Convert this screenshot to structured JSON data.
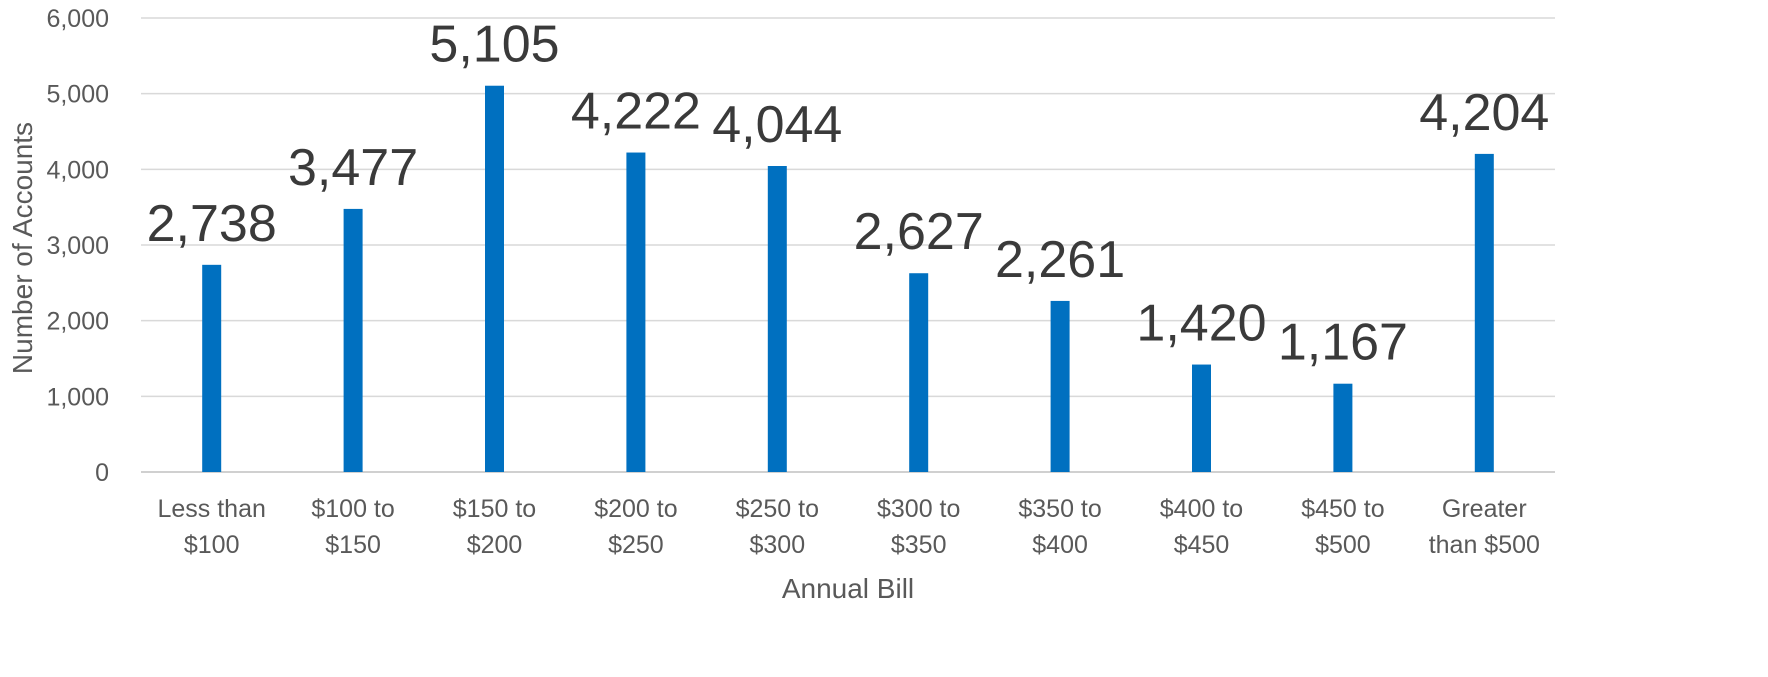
{
  "chart_data": {
    "type": "bar",
    "title": "",
    "xlabel": "Annual Bill",
    "ylabel": "Number of Accounts",
    "ylim": [
      0,
      6000
    ],
    "yticks": [
      0,
      1000,
      2000,
      3000,
      4000,
      5000,
      6000
    ],
    "ytick_labels": [
      "0",
      "1,000",
      "2,000",
      "3,000",
      "4,000",
      "5,000",
      "6,000"
    ],
    "grid": true,
    "legend": "none",
    "colors": {
      "bar": "#0070c0",
      "grid": "#d9d9d9",
      "axis_text": "#595959",
      "data_label": "#3a3a3a"
    },
    "categories": [
      [
        "Less than",
        "$100"
      ],
      [
        "$100 to",
        "$150"
      ],
      [
        "$150 to",
        "$200"
      ],
      [
        "$200 to",
        "$250"
      ],
      [
        "$250 to",
        "$300"
      ],
      [
        "$300 to",
        "$350"
      ],
      [
        "$350 to",
        "$400"
      ],
      [
        "$400 to",
        "$450"
      ],
      [
        "$450 to",
        "$500"
      ],
      [
        "Greater",
        "than $500"
      ]
    ],
    "values": [
      2738,
      3477,
      5105,
      4222,
      4044,
      2627,
      2261,
      1420,
      1167,
      4204
    ],
    "data_labels": [
      "2,738",
      "3,477",
      "5,105",
      "4,222",
      "4,044",
      "2,627",
      "2,261",
      "1,420",
      "1,167",
      "4,204"
    ]
  }
}
